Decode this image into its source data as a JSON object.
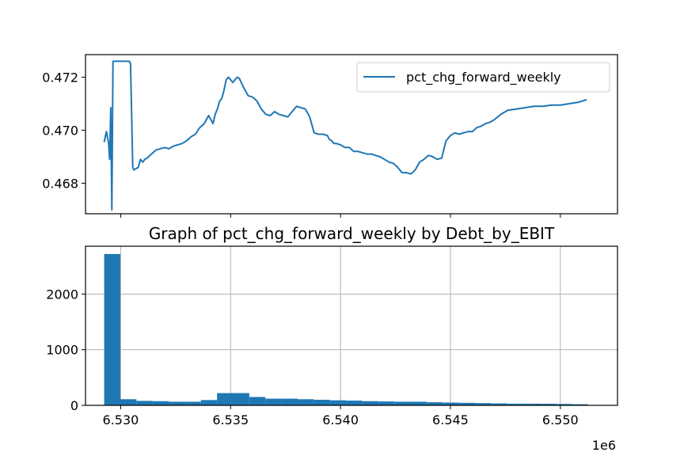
{
  "chart_data": [
    {
      "type": "line",
      "title": "",
      "xlabel": "",
      "ylabel": "",
      "xlim": [
        6528400,
        6552600
      ],
      "ylim": [
        0.46685,
        0.47285
      ],
      "xticks": [
        6530000,
        6535000,
        6540000,
        6545000,
        6550000
      ],
      "yticks": [
        0.468,
        0.47,
        0.472
      ],
      "ytick_labels": [
        "0.468",
        "0.470",
        "0.472"
      ],
      "grid": false,
      "legend": {
        "placement": "top-right",
        "entries": [
          "pct_chg_forward_weekly"
        ]
      },
      "series": [
        {
          "name": "pct_chg_forward_weekly",
          "color": "#1f77b4",
          "x": [
            6529250,
            6529350,
            6529450,
            6529500,
            6529550,
            6529600,
            6529650,
            6529700,
            6529750,
            6529800,
            6529850,
            6529900,
            6530300,
            6530350,
            6530400,
            6530450,
            6530550,
            6530600,
            6530700,
            6530800,
            6530900,
            6531000,
            6531100,
            6531200,
            6531400,
            6531600,
            6531800,
            6532000,
            6532200,
            6532400,
            6532600,
            6532800,
            6533000,
            6533200,
            6533400,
            6533600,
            6533800,
            6534000,
            6534200,
            6534300,
            6534400,
            6534500,
            6534600,
            6534700,
            6534800,
            6534900,
            6535000,
            6535100,
            6535200,
            6535300,
            6535400,
            6535600,
            6535800,
            6536000,
            6536200,
            6536400,
            6536600,
            6536800,
            6537000,
            6537200,
            6537400,
            6537600,
            6537800,
            6538000,
            6538200,
            6538400,
            6538600,
            6538800,
            6539000,
            6539200,
            6539400,
            6539500,
            6539600,
            6539700,
            6539800,
            6540000,
            6540200,
            6540400,
            6540600,
            6540800,
            6541000,
            6541200,
            6541400,
            6541600,
            6541800,
            6542000,
            6542200,
            6542400,
            6542600,
            6542800,
            6543000,
            6543200,
            6543400,
            6543600,
            6543800,
            6544000,
            6544200,
            6544400,
            6544600,
            6544800,
            6545000,
            6545200,
            6545400,
            6545600,
            6545800,
            6546000,
            6546200,
            6546400,
            6546600,
            6546800,
            6547000,
            6547300,
            6547600,
            6548000,
            6548400,
            6548800,
            6549200,
            6549600,
            6550000,
            6550400,
            6550800,
            6551200
          ],
          "y": [
            0.46955,
            0.46995,
            0.4695,
            0.4689,
            0.47085,
            0.467,
            0.4726,
            0.4726,
            0.4726,
            0.4726,
            0.4726,
            0.4726,
            0.4726,
            0.4726,
            0.4726,
            0.4725,
            0.4686,
            0.4685,
            0.46855,
            0.4686,
            0.4689,
            0.4688,
            0.4689,
            0.46895,
            0.4691,
            0.46925,
            0.4693,
            0.46935,
            0.4693,
            0.4694,
            0.46945,
            0.4695,
            0.4696,
            0.46975,
            0.46985,
            0.4701,
            0.47025,
            0.47055,
            0.47025,
            0.4706,
            0.4708,
            0.4711,
            0.4712,
            0.4715,
            0.4719,
            0.472,
            0.4719,
            0.4718,
            0.4719,
            0.472,
            0.47195,
            0.4716,
            0.4713,
            0.47125,
            0.4711,
            0.4708,
            0.4706,
            0.47055,
            0.4707,
            0.4706,
            0.47055,
            0.4705,
            0.4707,
            0.4709,
            0.47085,
            0.4708,
            0.4705,
            0.4699,
            0.46985,
            0.46985,
            0.4698,
            0.46965,
            0.4696,
            0.4695,
            0.4695,
            0.46945,
            0.46935,
            0.46935,
            0.4692,
            0.4692,
            0.46915,
            0.4691,
            0.4691,
            0.46905,
            0.469,
            0.4689,
            0.4688,
            0.46875,
            0.4686,
            0.4684,
            0.4684,
            0.46835,
            0.4685,
            0.4688,
            0.4689,
            0.46905,
            0.469,
            0.4689,
            0.46895,
            0.4696,
            0.4698,
            0.4699,
            0.46985,
            0.4699,
            0.46995,
            0.46995,
            0.4701,
            0.47015,
            0.47025,
            0.4703,
            0.4704,
            0.4706,
            0.47075,
            0.4708,
            0.47085,
            0.4709,
            0.4709,
            0.47095,
            0.47095,
            0.471,
            0.47105,
            0.47115
          ]
        }
      ]
    },
    {
      "type": "bar",
      "title": "Graph of pct_chg_forward_weekly by Debt_by_EBIT",
      "xlabel": "",
      "ylabel": "",
      "xlim": [
        6528400,
        6552600
      ],
      "ylim": [
        0,
        2860
      ],
      "xticks": [
        6530000,
        6535000,
        6540000,
        6545000,
        6550000
      ],
      "xtick_labels": [
        "6.530",
        "6.535",
        "6.540",
        "6.545",
        "6.550"
      ],
      "x_offset_label": "1e6",
      "yticks": [
        0,
        1000,
        2000
      ],
      "ytick_labels": [
        "0",
        "1000",
        "2000"
      ],
      "grid": true,
      "legend": null,
      "color": "#1f77b4",
      "bin_range": [
        6529250,
        6551250
      ],
      "bins": 30,
      "values": [
        2720,
        110,
        80,
        75,
        65,
        65,
        95,
        220,
        220,
        150,
        120,
        120,
        110,
        100,
        90,
        85,
        75,
        70,
        65,
        65,
        55,
        50,
        45,
        40,
        35,
        30,
        30,
        28,
        25,
        20
      ]
    }
  ]
}
